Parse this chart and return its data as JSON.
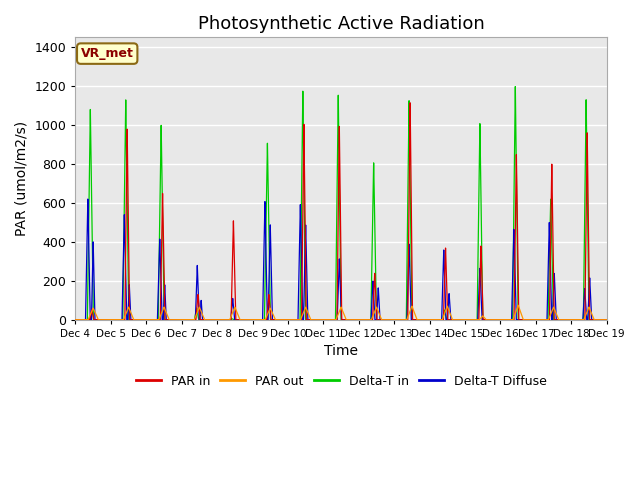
{
  "title": "Photosynthetic Active Radiation",
  "ylabel": "PAR (umol/m2/s)",
  "xlabel": "Time",
  "annotation": "VR_met",
  "ylim": [
    0,
    1450
  ],
  "yticks": [
    0,
    200,
    400,
    600,
    800,
    1000,
    1200,
    1400
  ],
  "xtick_labels": [
    "Dec 4",
    "Dec 5",
    "Dec 6",
    "Dec 7",
    "Dec 8",
    "Dec 9",
    "Dec 10",
    "Dec 11",
    "Dec 12",
    "Dec 13",
    "Dec 14",
    "Dec 15",
    "Dec 16",
    "Dec 17",
    "Dec 18",
    "Dec 19"
  ],
  "colors": {
    "par_in": "#dd0000",
    "par_out": "#ff9900",
    "delta_t_in": "#00cc00",
    "delta_t_diffuse": "#0000cc"
  },
  "background_color": "#e8e8e8",
  "grid_color": "#ffffff",
  "legend_labels": [
    "PAR in",
    "PAR out",
    "Delta-T in",
    "Delta-T Diffuse"
  ],
  "title_fontsize": 13,
  "label_fontsize": 10
}
